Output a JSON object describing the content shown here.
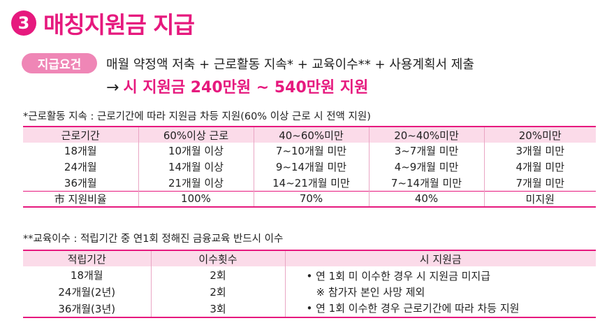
{
  "title": {
    "number": "3",
    "text": "매칭지원금 지급"
  },
  "requirement": {
    "badge": "지급요건",
    "line1": "매월 약정액 저축 + 근로활동 지속* + 교육이수** + 사용계획서 제출",
    "arrow": "→",
    "line2": "시 지원금 240만원 ~ 540만원 지원"
  },
  "note_work": "*근로활동 지속 : 근로기간에 따라 지원금 차등 지원(60% 이상 근로 시 전액 지원)",
  "work_table": {
    "headers": [
      "근로기간",
      "60%이상 근로",
      "40~60%미만",
      "20~40%미만",
      "20%미만"
    ],
    "rows": [
      [
        "18개월",
        "10개월 이상",
        "7~10개월 미만",
        "3~7개월 미만",
        "3개월 미만"
      ],
      [
        "24개월",
        "14개월 이상",
        "9~14개월 미만",
        "4~9개월 미만",
        "4개월 미만"
      ],
      [
        "36개월",
        "21개월 이상",
        "14~21개월 미만",
        "7~14개월 미만",
        "7개월 미만"
      ]
    ],
    "ratio_row": [
      "市 지원비율",
      "100%",
      "70%",
      "40%",
      "미지원"
    ]
  },
  "note_edu": "**교육이수 :  적립기간 중 연1회 정해진 금융교육 반드시 이수",
  "edu_table": {
    "headers": [
      "적립기간",
      "이수횟수",
      "시 지원금"
    ],
    "rows": [
      [
        "18개월",
        "2회"
      ],
      [
        "24개월(2년)",
        "2회"
      ],
      [
        "36개월(3년)",
        "3회"
      ]
    ],
    "subsidy": [
      "• 연 1회 미 이수한 경우 시 지원금 미지급",
      "※ 참가자 본인 사망 제외",
      "• 연 1회 이수한 경우 근로기간에 따라 차등 지원"
    ]
  },
  "colors": {
    "accent": "#e6197e",
    "badge": "#ef86b6",
    "header_bg": "#fbdbe9"
  }
}
